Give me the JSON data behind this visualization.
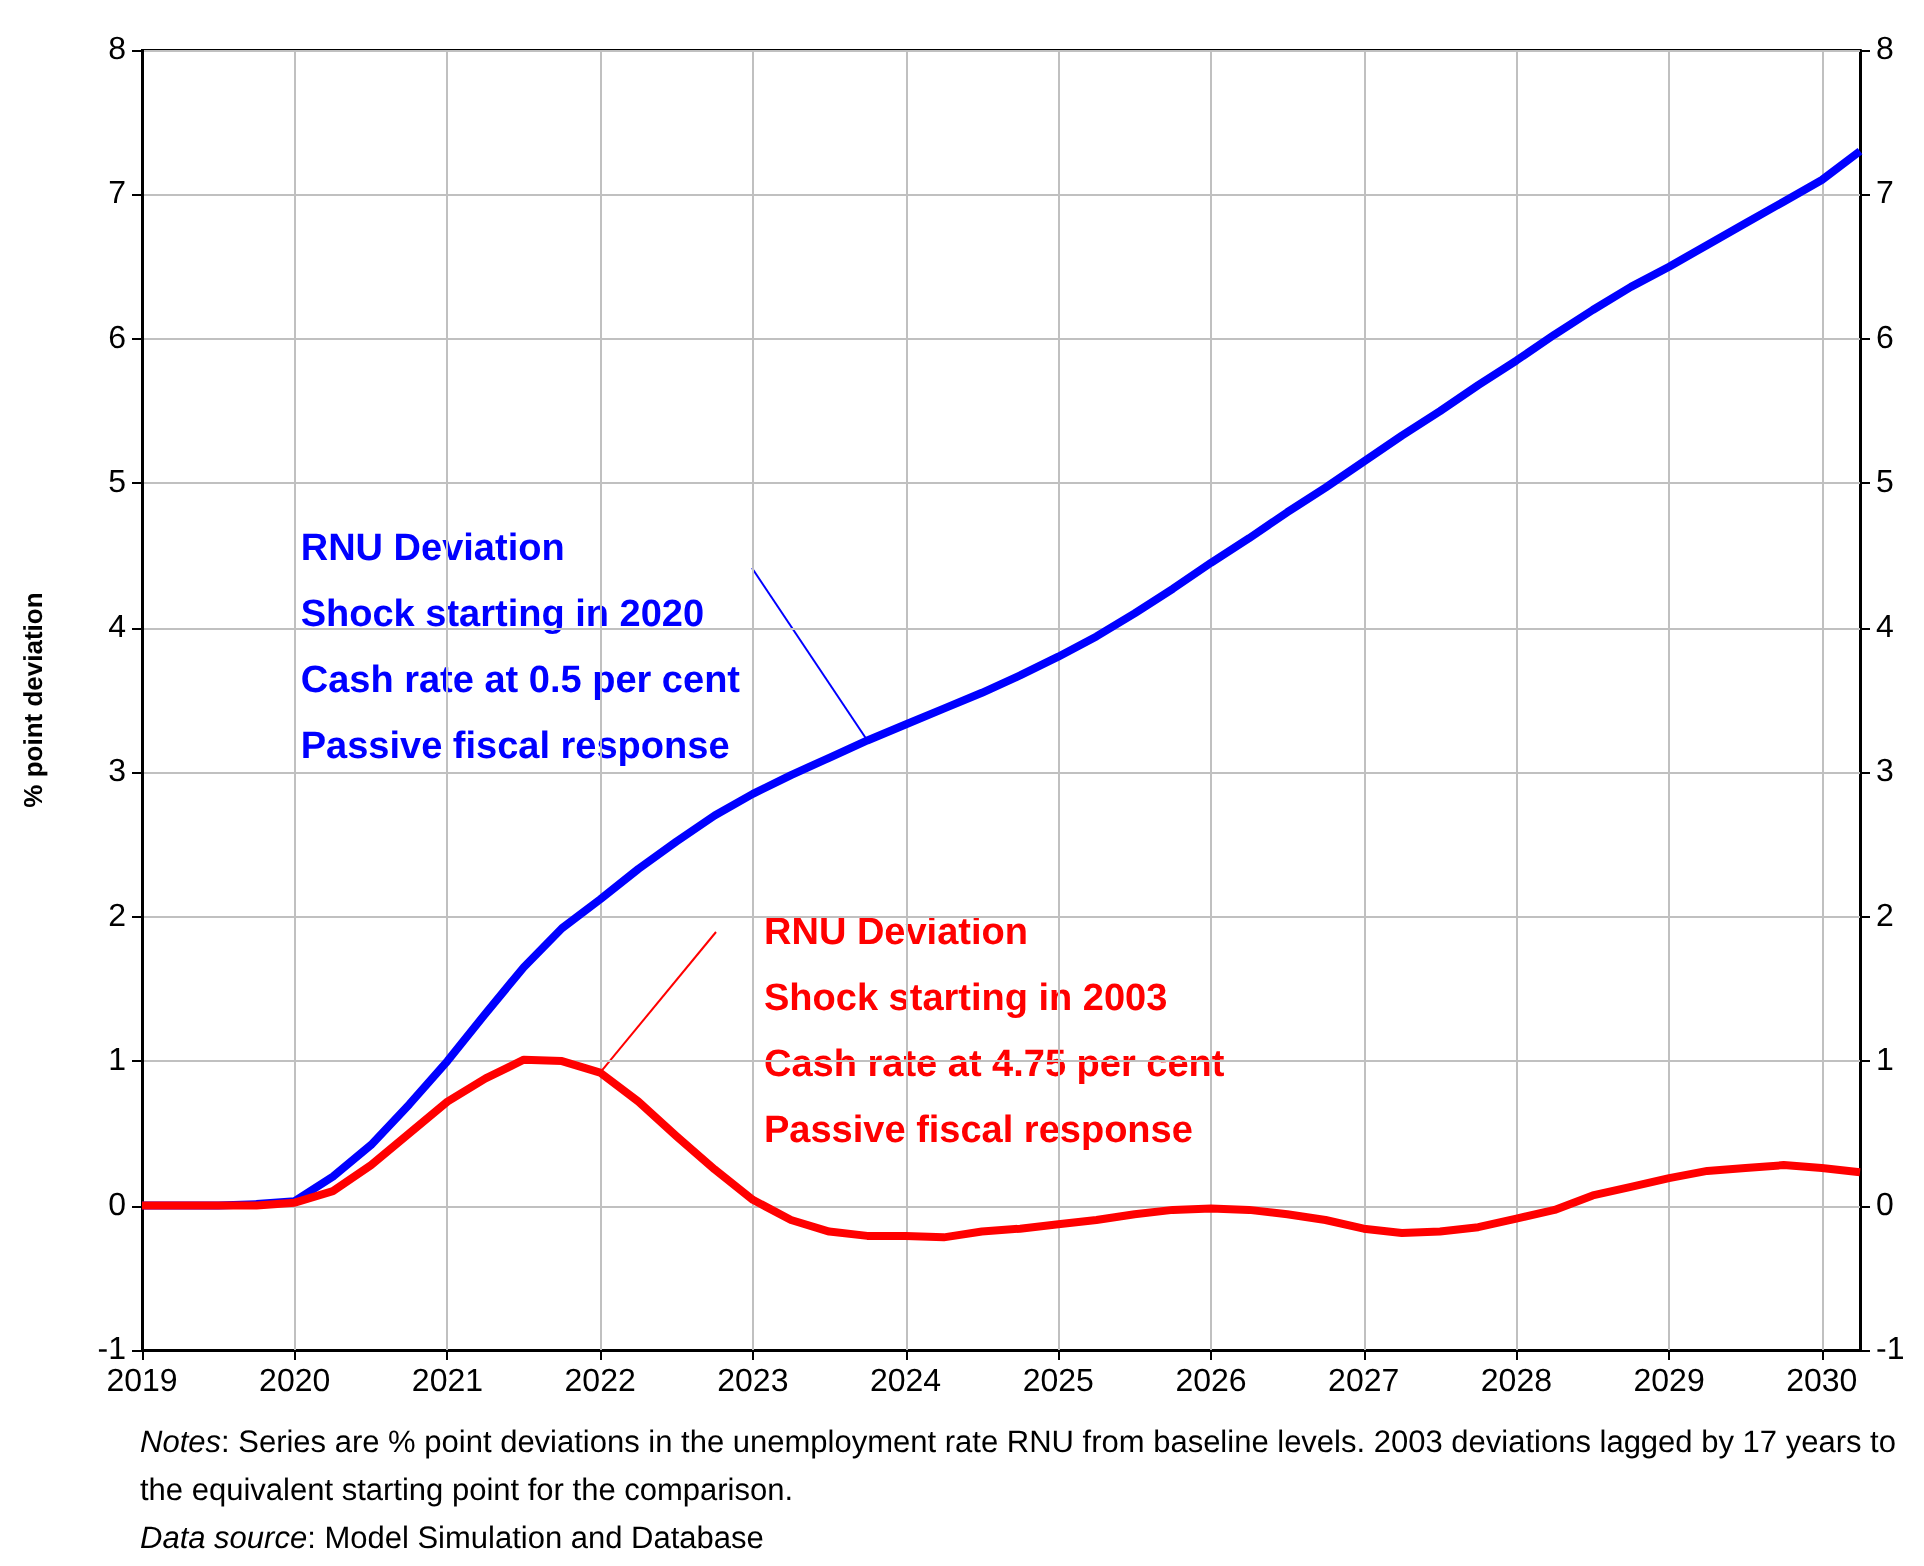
{
  "chart_data": {
    "type": "line",
    "ylabel": "% point deviation",
    "xlim": [
      2019,
      2030.25
    ],
    "xticks": [
      2019,
      2020,
      2021,
      2022,
      2023,
      2024,
      2025,
      2026,
      2027,
      2028,
      2029,
      2030
    ],
    "ylim": [
      -1,
      8
    ],
    "yticks": [
      -1,
      0,
      1,
      2,
      3,
      4,
      5,
      6,
      7,
      8
    ],
    "y2lim": [
      -1,
      8
    ],
    "y2ticks": [
      -1,
      0,
      1,
      2,
      3,
      4,
      5,
      6,
      7,
      8
    ],
    "grid": true,
    "marker": "none",
    "line_style": "solid",
    "x": [
      2019,
      2019.25,
      2019.5,
      2019.75,
      2020,
      2020.25,
      2020.5,
      2020.75,
      2021,
      2021.25,
      2021.5,
      2021.75,
      2022,
      2022.25,
      2022.5,
      2022.75,
      2023,
      2023.25,
      2023.5,
      2023.75,
      2024,
      2024.25,
      2024.5,
      2024.75,
      2025,
      2025.25,
      2025.5,
      2025.75,
      2026,
      2026.25,
      2026.5,
      2026.75,
      2027,
      2027.25,
      2027.5,
      2027.75,
      2028,
      2028.25,
      2028.5,
      2028.75,
      2029,
      2029.25,
      2029.5,
      2029.75,
      2030,
      2030.25
    ],
    "series": [
      {
        "color": "#0000ff",
        "values": [
          0,
          0,
          0,
          0.01,
          0.03,
          0.2,
          0.42,
          0.7,
          1.0,
          1.33,
          1.65,
          1.92,
          2.12,
          2.33,
          2.52,
          2.7,
          2.85,
          2.98,
          3.1,
          3.22,
          3.33,
          3.44,
          3.55,
          3.67,
          3.8,
          3.94,
          4.1,
          4.27,
          4.45,
          4.62,
          4.8,
          4.97,
          5.15,
          5.33,
          5.5,
          5.68,
          5.85,
          6.03,
          6.2,
          6.36,
          6.5,
          6.65,
          6.8,
          6.95,
          7.1,
          7.3
        ]
      },
      {
        "color": "#ff0000",
        "values": [
          0,
          0,
          0,
          0,
          0.02,
          0.1,
          0.28,
          0.5,
          0.72,
          0.88,
          1.01,
          1.0,
          0.92,
          0.72,
          0.48,
          0.25,
          0.04,
          -0.1,
          -0.18,
          -0.21,
          -0.21,
          -0.22,
          -0.18,
          -0.16,
          -0.13,
          -0.1,
          -0.06,
          -0.03,
          -0.02,
          -0.03,
          -0.06,
          -0.1,
          -0.16,
          -0.19,
          -0.18,
          -0.15,
          -0.09,
          -0.03,
          0.07,
          0.13,
          0.19,
          0.24,
          0.26,
          0.28,
          0.26,
          0.23
        ]
      }
    ],
    "annotations": [
      {
        "text": "RNU Deviation\nShock starting in 2020\nCash rate at 0.5 per cent\nPassive fiscal response",
        "x": 2023.75,
        "y": 3.22
      },
      {
        "text": "RNU Deviation\nShock starting in 2003\nCash rate at 4.75 per cent\nPassive fiscal response",
        "x": 2022,
        "y": 0.92
      },
      "Notes: Series are % point deviations in the unemployment rate RNU from baseline levels. 2003 deviations lagged by 17 years to the equivalent starting point for the comparison.",
      "Data source: Model Simulation and Database"
    ]
  }
}
